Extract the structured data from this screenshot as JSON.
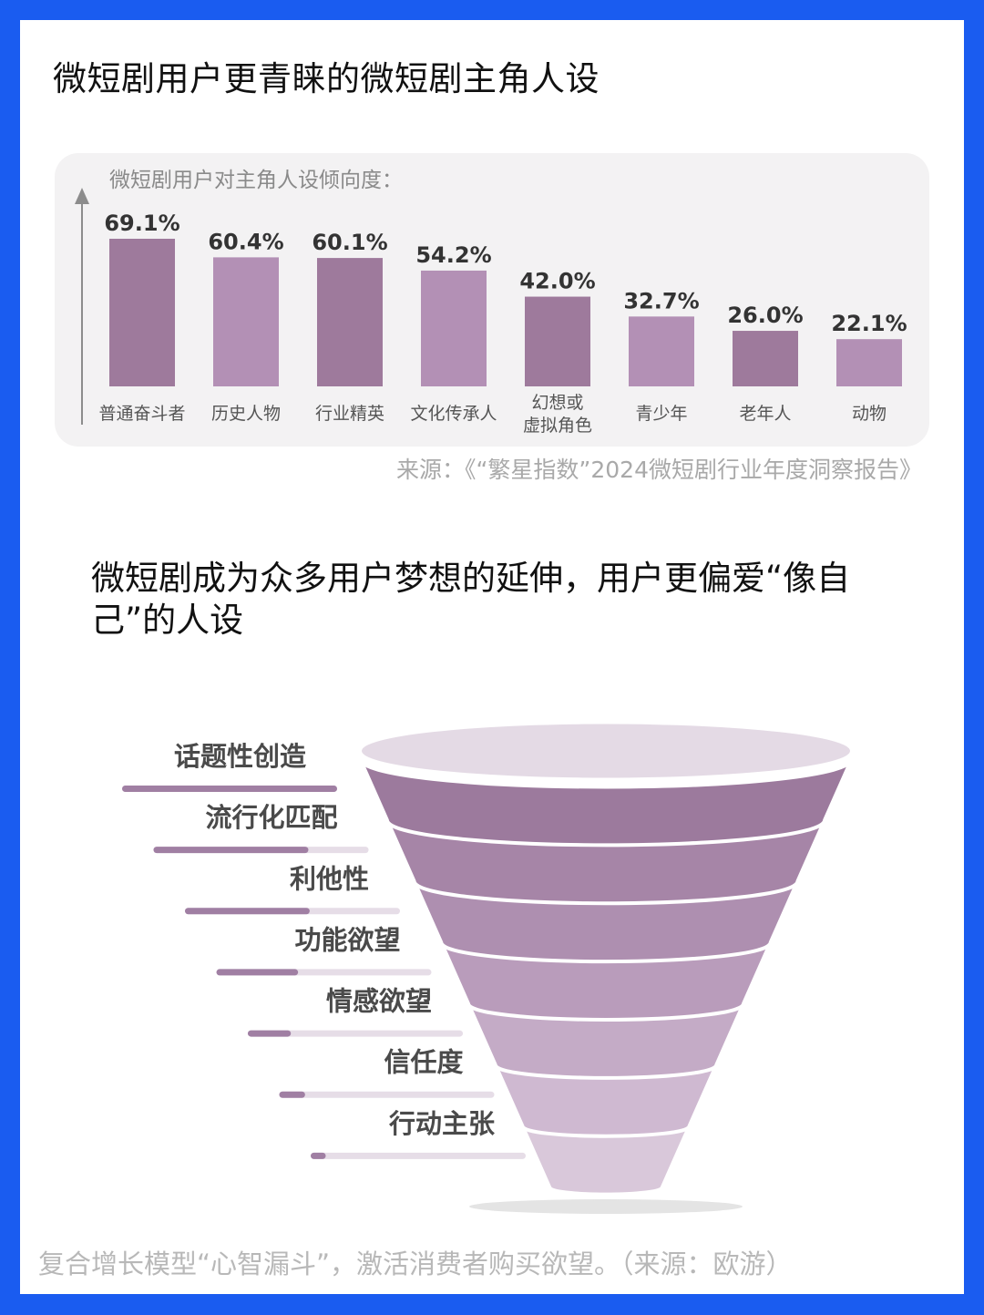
{
  "page_title": "微短剧用户更青睐的微短剧主角人设",
  "chart_data": [
    {
      "type": "bar",
      "title": "微短剧用户对主角人设倾向度：",
      "categories": [
        "普通奋斗者",
        "历史人物",
        "行业精英",
        "文化传承人",
        "幻想或\n虚拟角色",
        "青少年",
        "老年人",
        "动物"
      ],
      "values": [
        69.1,
        60.4,
        60.1,
        54.2,
        42.0,
        32.7,
        26.0,
        22.1
      ],
      "value_labels": [
        "69.1%",
        "60.4%",
        "60.1%",
        "54.2%",
        "42.0%",
        "32.7%",
        "26.0%",
        "22.1%"
      ],
      "unit": "%",
      "bar_colors": [
        "#9e7a9c",
        "#b390b5"
      ],
      "grid": false,
      "legend": "none"
    },
    {
      "type": "funnel",
      "stages": [
        "话题性创造",
        "流行化匹配",
        "利他性",
        "功能欲望",
        "情感欲望",
        "信任度",
        "行动主张"
      ],
      "indicator_fill": [
        1.0,
        0.72,
        0.58,
        0.38,
        0.2,
        0.12,
        0.07
      ],
      "colors": [
        "#9c7a9d",
        "#a685a7",
        "#ae8fb0",
        "#b99cbb",
        "#c4abc6",
        "#cfb9d1",
        "#d9c8da"
      ],
      "rim_color": "#e4dae5"
    }
  ],
  "source_1": "来源：《“繁星指数”2024微短剧行业年度洞察报告》",
  "headline": "微短剧成为众多用户梦想的延伸，用户更偏爱“像自己”的人设",
  "source_2": "复合增长模型“心智漏斗”，激活消费者购买欲望。（来源：欧游）"
}
